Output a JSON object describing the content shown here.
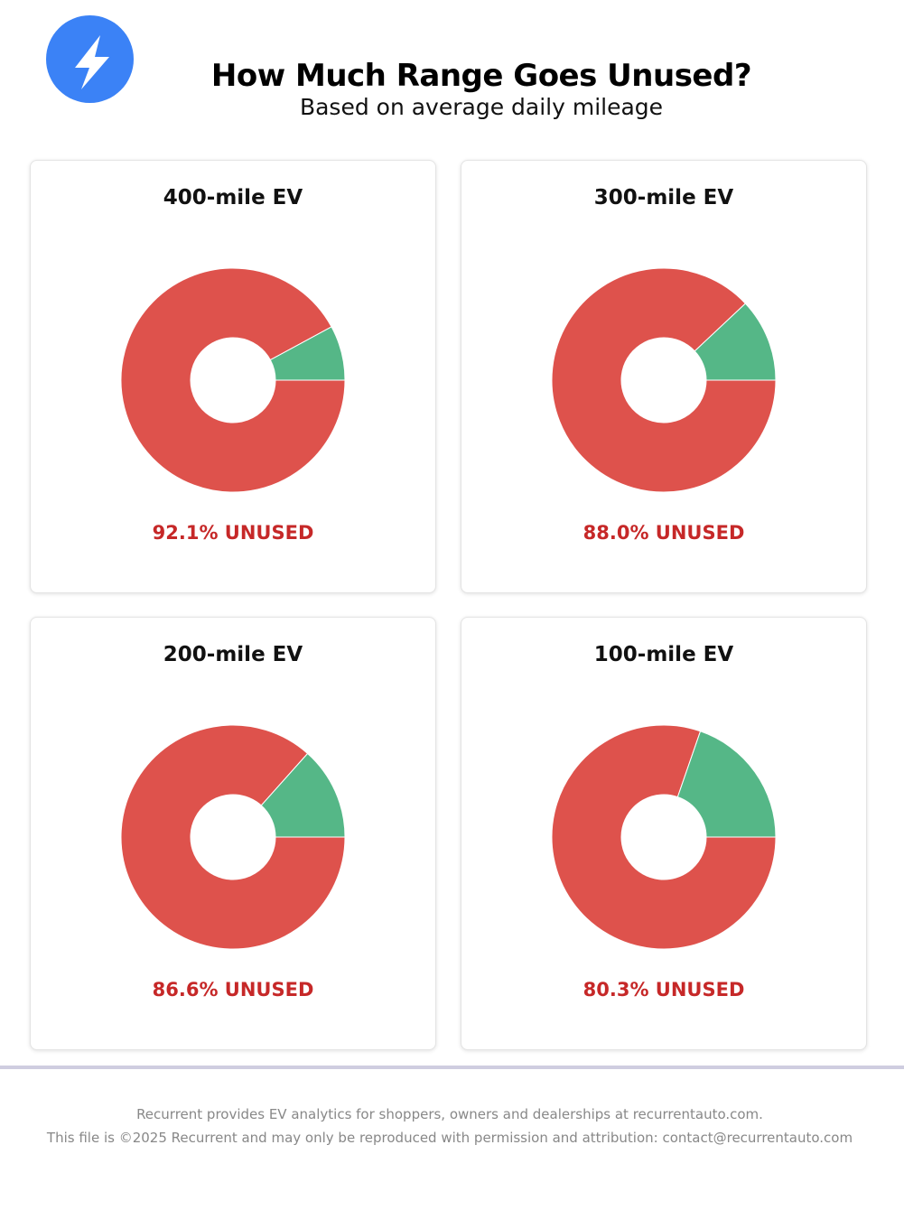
{
  "header": {
    "title": "How Much Range Goes Unused?",
    "subtitle": "Based on average daily mileage",
    "logo_icon": "lightning-bolt-icon"
  },
  "colors": {
    "unused": "#de524c",
    "used": "#55b787",
    "label": "#c62828",
    "logo": "#3b82f6"
  },
  "chart_data": [
    {
      "type": "pie",
      "title": "400-mile EV",
      "categories": [
        "Unused",
        "Used"
      ],
      "values": [
        92.1,
        7.9
      ],
      "label": "92.1% UNUSED"
    },
    {
      "type": "pie",
      "title": "300-mile EV",
      "categories": [
        "Unused",
        "Used"
      ],
      "values": [
        88.0,
        12.0
      ],
      "label": "88.0% UNUSED"
    },
    {
      "type": "pie",
      "title": "200-mile EV",
      "categories": [
        "Unused",
        "Used"
      ],
      "values": [
        86.6,
        13.4
      ],
      "label": "86.6% UNUSED"
    },
    {
      "type": "pie",
      "title": "100-mile EV",
      "categories": [
        "Unused",
        "Used"
      ],
      "values": [
        80.3,
        19.7
      ],
      "label": "80.3% UNUSED"
    }
  ],
  "footer": {
    "line1": "Recurrent provides EV analytics for shoppers, owners and dealerships at recurrentauto.com.",
    "line2": "This file is ©2025 Recurrent and may only be reproduced with permission and attribution: contact@recurrentauto.com"
  }
}
